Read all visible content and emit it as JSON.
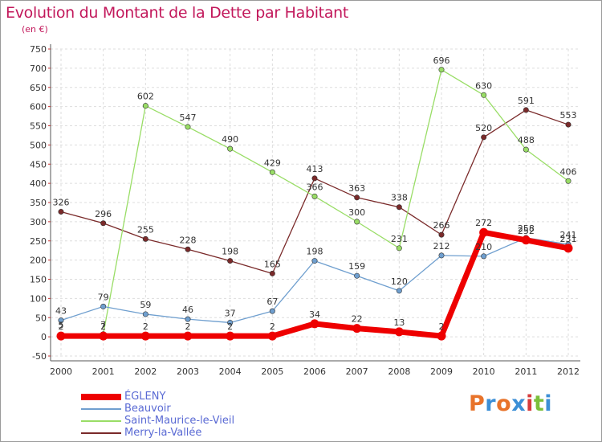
{
  "title": "Evolution du Montant de la Dette par Habitant",
  "subtitle": "(en €)",
  "brand": {
    "letters": [
      "P",
      "r",
      "o",
      "x",
      "i",
      "t",
      "i"
    ],
    "colors": [
      "#e8732a",
      "#3c8fd6",
      "#e8732a",
      "#3c8fd6",
      "#d63c3c",
      "#7bbf3a",
      "#3c8fd6"
    ]
  },
  "chart_data": {
    "type": "line",
    "title": "Evolution du Montant de la Dette par Habitant",
    "subtitle": "(en €)",
    "xlabel": "",
    "ylabel": "",
    "x": [
      "2000",
      "2001",
      "2002",
      "2003",
      "2004",
      "2005",
      "2006",
      "2007",
      "2008",
      "2009",
      "2010",
      "2011",
      "2012"
    ],
    "ylim": [
      -50,
      750
    ],
    "yticks": [
      -50,
      0,
      50,
      100,
      150,
      200,
      250,
      300,
      350,
      400,
      450,
      500,
      550,
      600,
      650,
      700,
      750
    ],
    "grid": true,
    "legend_position": "bottom-left",
    "series": [
      {
        "name": "ÉGLENY",
        "color": "#ee0000",
        "values": [
          2,
          2,
          2,
          2,
          2,
          2,
          34,
          22,
          13,
          2,
          272,
          252,
          231
        ],
        "labels": [
          "2",
          "2",
          "2",
          "2",
          "2",
          "2",
          "34",
          "22",
          "13",
          "2",
          "272",
          "252",
          "231"
        ]
      },
      {
        "name": "Beauvoir",
        "color": "#6f9fcf",
        "values": [
          43,
          79,
          59,
          46,
          37,
          67,
          198,
          159,
          120,
          212,
          210,
          258,
          241
        ],
        "labels": [
          "43",
          "79",
          "59",
          "46",
          "37",
          "67",
          "198",
          "159",
          "120",
          "212",
          "210",
          "258",
          "241"
        ]
      },
      {
        "name": "Saint-Maurice-le-Vieil",
        "color": "#99dd66",
        "values": [
          5,
          7,
          602,
          547,
          490,
          429,
          366,
          300,
          231,
          696,
          630,
          488,
          406
        ],
        "labels": [
          "5",
          "7",
          "602",
          "547",
          "490",
          "429",
          "366",
          "300",
          "231",
          "696",
          "630",
          "488",
          "406"
        ]
      },
      {
        "name": "Merry-la-Vallée",
        "color": "#7a2a2a",
        "values": [
          326,
          296,
          255,
          228,
          198,
          165,
          413,
          363,
          338,
          266,
          520,
          591,
          553
        ],
        "labels": [
          "326",
          "296",
          "255",
          "228",
          "198",
          "165",
          "413",
          "363",
          "338",
          "266",
          "520",
          "591",
          "553"
        ]
      }
    ]
  }
}
